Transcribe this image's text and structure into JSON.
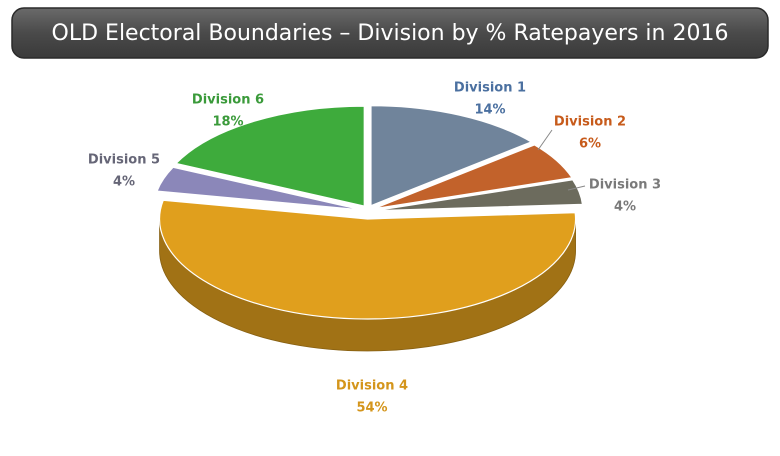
{
  "chart_data": {
    "type": "pie",
    "title": "OLD Electoral Boundaries – Division by % Ratepayers in 2016",
    "categories": [
      "Division 1",
      "Division 2",
      "Division 3",
      "Division 4",
      "Division 5",
      "Division 6"
    ],
    "values": [
      14,
      6,
      4,
      54,
      4,
      18
    ],
    "value_labels": [
      "14%",
      "6%",
      "4%",
      "54%",
      "4%",
      "18%"
    ],
    "colors": [
      "#70849b",
      "#c2622b",
      "#6c6b5d",
      "#e09f1d",
      "#8b87b9",
      "#3eab3c"
    ]
  }
}
